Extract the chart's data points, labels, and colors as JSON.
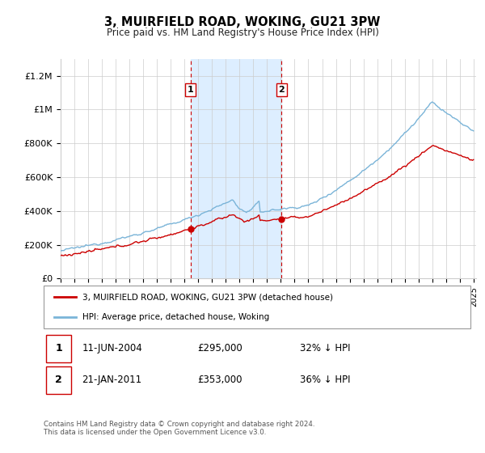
{
  "title": "3, MUIRFIELD ROAD, WOKING, GU21 3PW",
  "subtitle": "Price paid vs. HM Land Registry's House Price Index (HPI)",
  "ylim": [
    0,
    1300000
  ],
  "yticks": [
    0,
    200000,
    400000,
    600000,
    800000,
    1000000,
    1200000
  ],
  "ytick_labels": [
    "£0",
    "£200K",
    "£400K",
    "£600K",
    "£800K",
    "£1M",
    "£1.2M"
  ],
  "hpi_color": "#7ab4d8",
  "price_color": "#cc0000",
  "sale1_date": 2004.44,
  "sale1_price": 295000,
  "sale2_date": 2011.05,
  "sale2_price": 353000,
  "shade_color": "#ddeeff",
  "vline_color": "#cc0000",
  "legend_label1": "3, MUIRFIELD ROAD, WOKING, GU21 3PW (detached house)",
  "legend_label2": "HPI: Average price, detached house, Woking",
  "annotation1_date": "11-JUN-2004",
  "annotation1_price": "£295,000",
  "annotation1_hpi": "32% ↓ HPI",
  "annotation2_date": "21-JAN-2011",
  "annotation2_price": "£353,000",
  "annotation2_hpi": "36% ↓ HPI",
  "footnote": "Contains HM Land Registry data © Crown copyright and database right 2024.\nThis data is licensed under the Open Government Licence v3.0.",
  "background_color": "#ffffff",
  "grid_color": "#cccccc"
}
